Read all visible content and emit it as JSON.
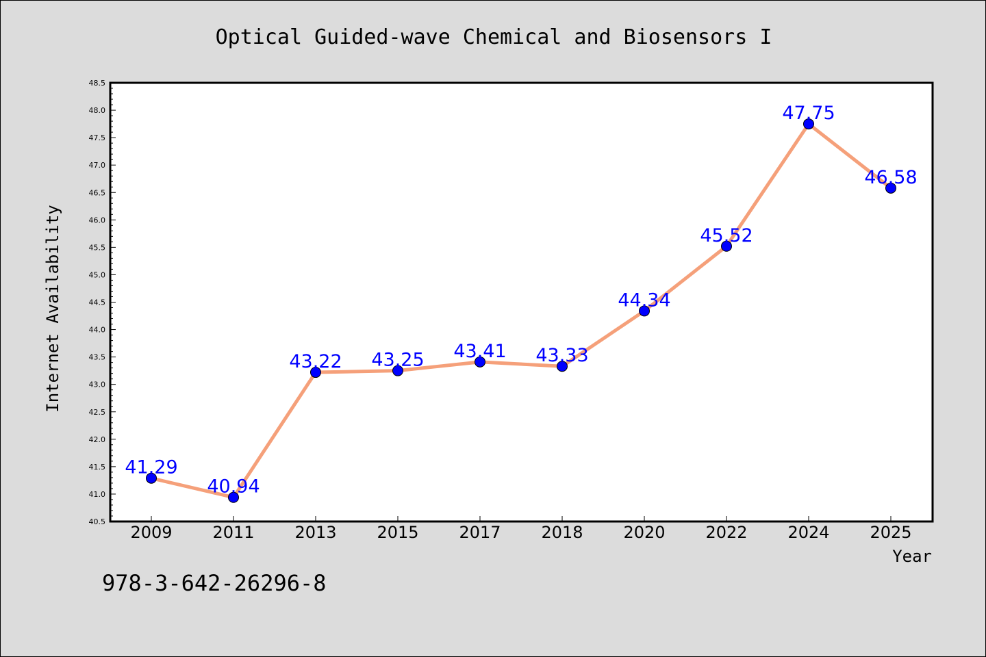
{
  "chart_data": {
    "type": "line",
    "title": "Optical Guided-wave Chemical and Biosensors I",
    "xlabel": "Year",
    "ylabel": "Internet Availability",
    "categories": [
      "2009",
      "2011",
      "2013",
      "2015",
      "2017",
      "2018",
      "2020",
      "2022",
      "2024",
      "2025"
    ],
    "series": [
      {
        "values": [
          41.29,
          40.94,
          43.22,
          43.25,
          43.41,
          43.33,
          44.34,
          45.52,
          47.75,
          46.58
        ],
        "labels": [
          "41.29",
          "40.94",
          "43.22",
          "43.25",
          "43.41",
          "43.33",
          "44.34",
          "45.52",
          "47.75",
          "46.58"
        ],
        "line_color": "#f5a07a",
        "marker_color": "#0000ff",
        "label_color": "#0000ff"
      }
    ],
    "ylim": [
      40.5,
      48.5
    ],
    "yticks": [
      "40.5",
      "41.0",
      "41.5",
      "42.0",
      "42.5",
      "43.0",
      "43.5",
      "44.0",
      "44.5",
      "45.0",
      "45.5",
      "46.0",
      "46.5",
      "47.0",
      "47.5",
      "48.0",
      "48.5"
    ],
    "grid": false,
    "legend": "none",
    "colors": {
      "background": "#dcdcdc",
      "plot_area": "#ffffff",
      "axis": "#000000"
    }
  },
  "footer": {
    "code": "978-3-642-26296-8"
  }
}
